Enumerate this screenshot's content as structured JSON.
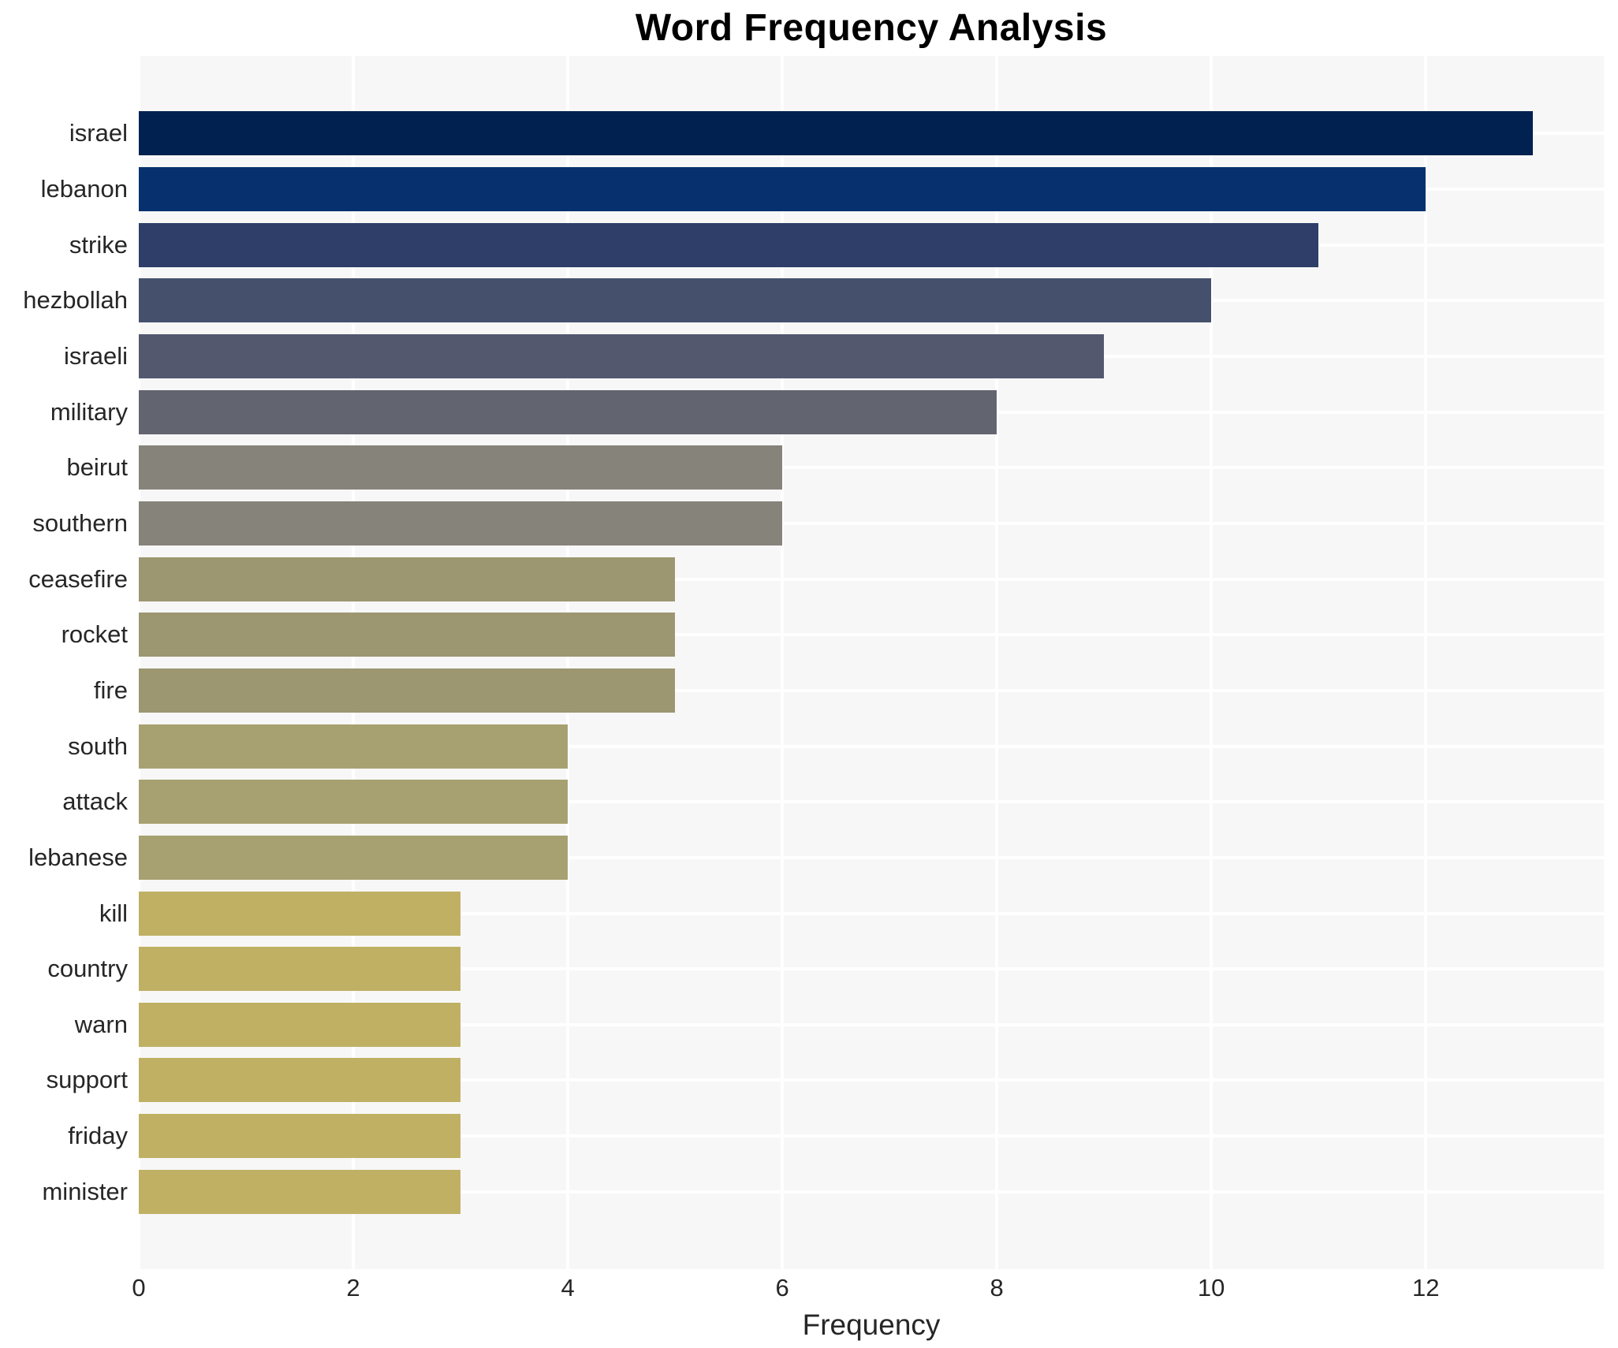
{
  "chart_data": {
    "type": "bar",
    "orientation": "horizontal",
    "title": "Word Frequency Analysis",
    "xlabel": "Frequency",
    "ylabel": "",
    "categories": [
      "israel",
      "lebanon",
      "strike",
      "hezbollah",
      "israeli",
      "military",
      "beirut",
      "southern",
      "ceasefire",
      "rocket",
      "fire",
      "south",
      "attack",
      "lebanese",
      "kill",
      "country",
      "warn",
      "support",
      "friday",
      "minister"
    ],
    "values": [
      13,
      12,
      11,
      10,
      9,
      8,
      6,
      6,
      5,
      5,
      5,
      4,
      4,
      4,
      3,
      3,
      3,
      3,
      3,
      3
    ],
    "bar_colors": [
      "#012250",
      "#07316e",
      "#2e3e69",
      "#44506c",
      "#53586f",
      "#626470",
      "#86837b",
      "#86837b",
      "#9c9671",
      "#9c9671",
      "#9c9671",
      "#a7a171",
      "#a7a171",
      "#a7a171",
      "#bfb064",
      "#bfb064",
      "#bfb064",
      "#bfb064",
      "#bfb064",
      "#bfb064"
    ],
    "xticks": [
      0,
      2,
      4,
      6,
      8,
      10,
      12
    ],
    "xlim": [
      0,
      13.66
    ],
    "grid": true,
    "legend": "none",
    "plot_background": "#f7f7f7",
    "grid_color": "#ffffff",
    "tick_color": "#262626",
    "title_color": "#000000"
  }
}
